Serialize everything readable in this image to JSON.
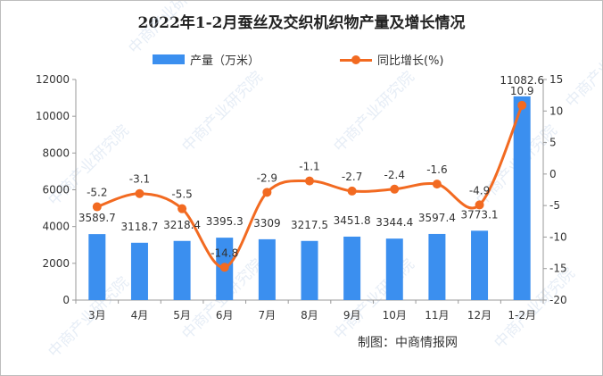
{
  "chart_data": {
    "type": "bar+line",
    "title": "2022年1-2月蚕丝及交织机织物产量及增长情况",
    "categories": [
      "3月",
      "4月",
      "5月",
      "6月",
      "7月",
      "8月",
      "9月",
      "10月",
      "11月",
      "12月",
      "1-2月"
    ],
    "series": [
      {
        "name": "产量（万米）",
        "type": "bar",
        "axis": "left",
        "color": "#3b8fef",
        "values": [
          3589.7,
          3118.7,
          3218.4,
          3395.3,
          3309,
          3217.5,
          3451.8,
          3344.4,
          3597.4,
          3773.1,
          11082.6
        ],
        "labels": [
          "3589.7",
          "3118.7",
          "3218.4",
          "3395.3",
          "3309",
          "3217.5",
          "3451.8",
          "3344.4",
          "3597.4",
          "3773.1",
          "11082.6"
        ]
      },
      {
        "name": "同比增长(%)",
        "type": "line",
        "axis": "right",
        "color": "#f26a21",
        "values": [
          -5.2,
          -3.1,
          -5.5,
          -14.8,
          -2.9,
          -1.1,
          -2.7,
          -2.4,
          -1.6,
          -4.9,
          10.9
        ],
        "labels": [
          "-5.2",
          "-3.1",
          "-5.5",
          "-14.8",
          "-2.9",
          "-1.1",
          "-2.7",
          "-2.4",
          "-1.6",
          "-4.9",
          "10.9"
        ]
      }
    ],
    "y_left": {
      "min": 0,
      "max": 12000,
      "ticks": [
        0,
        2000,
        4000,
        6000,
        8000,
        10000,
        12000
      ],
      "tick_labels": [
        "0",
        "2000",
        "4000",
        "6000",
        "8000",
        "10000",
        "12000"
      ]
    },
    "y_right": {
      "min": -20,
      "max": 15,
      "ticks": [
        -20,
        -15,
        -10,
        -5,
        0,
        5,
        10,
        15
      ],
      "tick_labels": [
        "-20",
        "-15",
        "-10",
        "-5",
        "0",
        "5",
        "10",
        "15"
      ]
    },
    "grid": false,
    "legend": "top-center"
  },
  "source": "制图：中商情报网",
  "watermark": "中商产业研究院"
}
